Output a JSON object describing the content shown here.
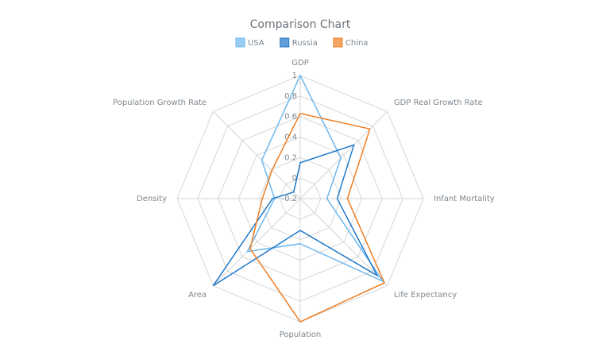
{
  "chart_data": {
    "type": "radar",
    "title": "Comparison Chart",
    "categories": [
      "GDP",
      "GDP Real Growth Rate",
      "Infant Mortality",
      "Life Expectancy",
      "Population",
      "Area",
      "Density",
      "Population Growth Rate"
    ],
    "series": [
      {
        "name": "USA",
        "color": "#6db8ef",
        "values": [
          1,
          0.36,
          0.06,
          0.94,
          0.24,
          0.53,
          0.05,
          0.33
        ]
      },
      {
        "name": "Russia",
        "color": "#1f78c8",
        "values": [
          0.15,
          0.54,
          0.16,
          0.86,
          0.11,
          1,
          0.07,
          -0.11
        ]
      },
      {
        "name": "China",
        "color": "#ef7d22",
        "values": [
          0.63,
          0.76,
          0.26,
          0.96,
          1,
          0.49,
          0.17,
          0.19
        ]
      }
    ],
    "ylim": [
      -0.2,
      1
    ],
    "yticks": [
      -0.2,
      0,
      0.2,
      0.4,
      0.6,
      0.8,
      1
    ],
    "grid": true
  }
}
